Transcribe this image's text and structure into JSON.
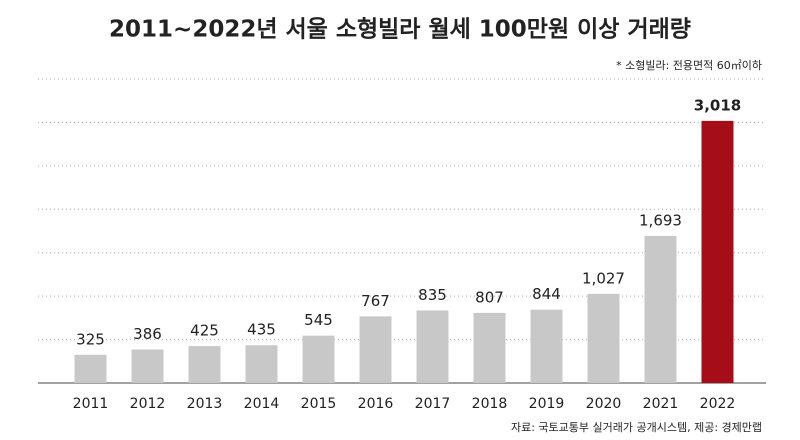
{
  "chart_data": {
    "type": "bar",
    "title": "2011~2022년 서울 소형빌라 월세 100만원 이상 거래량",
    "note": "* 소형빌라: 전용면적 60㎡이하",
    "source": "자료: 국토교통부 실거래가 공개시스템, 제공: 경제만랩",
    "categories": [
      "2011",
      "2012",
      "2013",
      "2014",
      "2015",
      "2016",
      "2017",
      "2018",
      "2019",
      "2020",
      "2021",
      "2022"
    ],
    "values": [
      325,
      386,
      425,
      435,
      545,
      767,
      835,
      807,
      844,
      1027,
      1693,
      3018
    ],
    "value_labels": [
      "325",
      "386",
      "425",
      "435",
      "545",
      "767",
      "835",
      "807",
      "844",
      "1,027",
      "1,693",
      "3,018"
    ],
    "colors": [
      "#c8c8c8",
      "#c8c8c8",
      "#c8c8c8",
      "#c8c8c8",
      "#c8c8c8",
      "#c8c8c8",
      "#c8c8c8",
      "#c8c8c8",
      "#c8c8c8",
      "#c8c8c8",
      "#c8c8c8",
      "#a50e18"
    ],
    "label_colors": [
      "#222222",
      "#222222",
      "#222222",
      "#222222",
      "#222222",
      "#222222",
      "#222222",
      "#222222",
      "#222222",
      "#222222",
      "#222222",
      "#a50e18"
    ],
    "ylim": [
      0,
      3500
    ],
    "yticks": [
      0,
      500,
      1000,
      1500,
      2000,
      2500,
      3000,
      3500
    ],
    "grid": true
  }
}
